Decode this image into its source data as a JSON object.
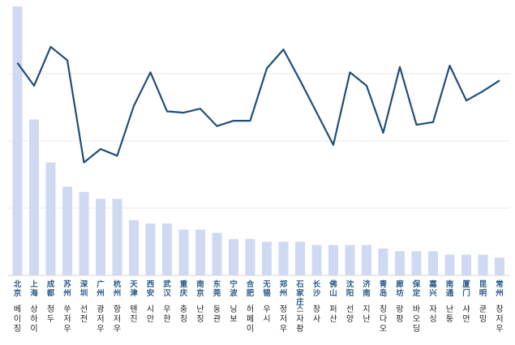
{
  "chart_data": {
    "type": "bar",
    "title": "",
    "xlabel": "",
    "ylabel": "",
    "grid": true,
    "categories_zh": [
      "北京",
      "上海",
      "成都",
      "苏州",
      "深圳",
      "广州",
      "杭州",
      "天津",
      "西安",
      "武汉",
      "重庆",
      "南京",
      "东莞",
      "宁波",
      "合肥",
      "无锡",
      "郑州",
      "石家庄",
      "长沙",
      "佛山",
      "沈阳",
      "济南",
      "青岛",
      "廊坊",
      "保定",
      "嘉兴",
      "南通",
      "厦门",
      "昆明",
      "常州"
    ],
    "categories_ko": [
      "베이징",
      "상하이",
      "청두",
      "쑤저우",
      "선전",
      "광저우",
      "항저우",
      "톈진",
      "시안",
      "우한",
      "충칭",
      "난징",
      "둥관",
      "닝보",
      "허페이",
      "우시",
      "정저우",
      "스자좡",
      "창사",
      "퍼산",
      "선양",
      "지난",
      "칭다오",
      "랑팡",
      "바오딩",
      "자싱",
      "난퉁",
      "샤먼",
      "쿤밍",
      "창저우"
    ],
    "bar_ylim": [
      0,
      100
    ],
    "line_ylim": [
      0,
      100
    ],
    "series": [
      {
        "kind": "bar",
        "color": "#cfdaf2",
        "values": [
          100,
          58,
          42,
          33,
          31,
          28.5,
          28.5,
          20.5,
          19.3,
          19.3,
          17,
          17,
          15.8,
          13.5,
          13.5,
          12.5,
          12.5,
          12.5,
          11.3,
          11.3,
          11.3,
          11.3,
          10,
          9,
          9,
          9,
          7.7,
          7.7,
          7.7,
          6.6
        ]
      },
      {
        "kind": "line",
        "color": "#1f4e79",
        "values": [
          79,
          70.5,
          85,
          80,
          42,
          47,
          44.5,
          63,
          75.5,
          61,
          60.5,
          62,
          55.5,
          57.5,
          57.5,
          77,
          84,
          72.5,
          60.5,
          48.5,
          75.5,
          70.5,
          53,
          77.5,
          56,
          57,
          78,
          65,
          68.5,
          72.5
        ]
      }
    ]
  }
}
